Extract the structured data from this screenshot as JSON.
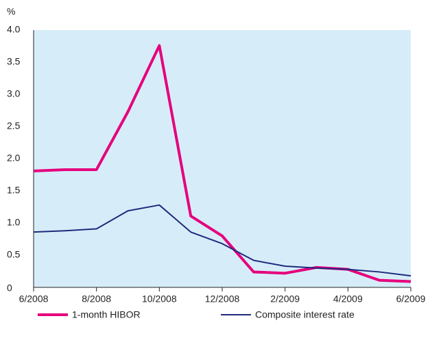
{
  "chart_data": {
    "type": "line",
    "y_label": "%",
    "categories": [
      "6/2008",
      null,
      "8/2008",
      null,
      "10/2008",
      null,
      "12/2008",
      null,
      "2/2009",
      null,
      "4/2009",
      null,
      "6/2009"
    ],
    "series": [
      {
        "name": "1-month HIBOR",
        "color": "#e5007d",
        "values": [
          1.81,
          1.83,
          1.83,
          2.73,
          3.76,
          1.11,
          0.8,
          0.24,
          0.22,
          0.31,
          0.28,
          0.11,
          0.09
        ]
      },
      {
        "name": "Composite interest rate",
        "color": "#1d2a7c",
        "values": [
          0.86,
          0.88,
          0.91,
          1.19,
          1.28,
          0.86,
          0.68,
          0.42,
          0.33,
          0.3,
          0.28,
          0.24,
          0.18
        ]
      }
    ],
    "ylim": [
      0,
      4
    ],
    "yticks": [
      0,
      0.5,
      {
        "value": 1,
        "label": "1.0"
      },
      1.5,
      {
        "value": 2,
        "label": "2.0"
      },
      2.5,
      {
        "value": 3,
        "label": "3.0"
      },
      3.5,
      {
        "value": 4,
        "label": "4.0"
      }
    ],
    "background": "#d6edf9",
    "grid": false
  }
}
